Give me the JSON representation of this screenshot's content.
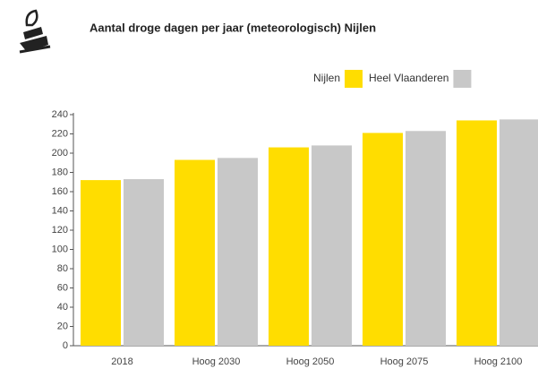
{
  "chart_data": {
    "type": "bar",
    "title": "Aantal droge dagen per jaar (meteorologisch) Nijlen",
    "categories": [
      "2018",
      "Hoog 2030",
      "Hoog 2050",
      "Hoog 2075",
      "Hoog 2100"
    ],
    "series": [
      {
        "name": "Nijlen",
        "color": "#ffdd00",
        "values": [
          172,
          193,
          206,
          221,
          234
        ]
      },
      {
        "name": "Heel Vlaanderen",
        "color": "#c8c8c8",
        "values": [
          173,
          195,
          208,
          223,
          235
        ]
      }
    ],
    "ylim": [
      0,
      240
    ],
    "yticks": [
      0,
      20,
      40,
      60,
      80,
      100,
      120,
      140,
      160,
      180,
      200,
      220,
      240
    ],
    "grid": false
  }
}
